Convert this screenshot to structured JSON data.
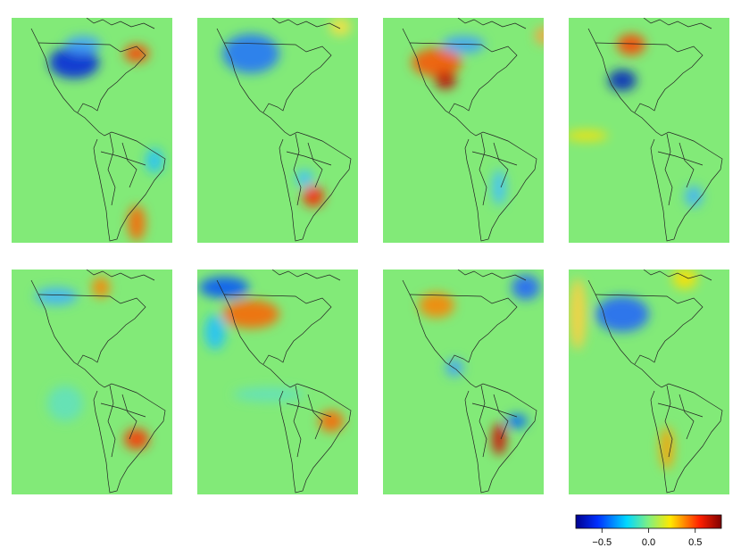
{
  "chart_data": {
    "type": "colorbar",
    "clim": [
      -0.78,
      0.78
    ],
    "ticks": [
      {
        "value": -0.5,
        "label": "−0.5"
      },
      {
        "value": 0,
        "label": "0.0"
      },
      {
        "value": 0.5,
        "label": "0.5"
      }
    ]
  }
}
